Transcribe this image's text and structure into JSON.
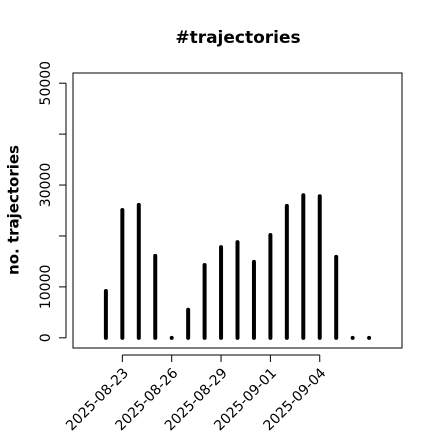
{
  "chart_data": {
    "type": "bar",
    "title": "#trajectories",
    "ylabel": "no. trajectories",
    "x": [
      "2025-08-22",
      "2025-08-23",
      "2025-08-24",
      "2025-08-25",
      "2025-08-26",
      "2025-08-27",
      "2025-08-28",
      "2025-08-29",
      "2025-08-30",
      "2025-08-31",
      "2025-09-01",
      "2025-09-02",
      "2025-09-03",
      "2025-09-04",
      "2025-09-05",
      "2025-09-06",
      "2025-09-07"
    ],
    "values": [
      9200,
      25100,
      26100,
      16100,
      0,
      5500,
      14300,
      17800,
      18800,
      14900,
      20200,
      25900,
      28000,
      27800,
      15900,
      0,
      0
    ],
    "color": "#000000",
    "xlim": [
      "2025-08-20",
      "2025-09-09"
    ],
    "xticks": [
      "2025-08-23",
      "2025-08-26",
      "2025-08-29",
      "2025-09-01",
      "2025-09-04"
    ],
    "ylim": [
      -2000,
      52000
    ],
    "yticks": [
      0,
      10000,
      30000,
      50000
    ],
    "yminor_ticks": [
      20000,
      40000
    ]
  }
}
